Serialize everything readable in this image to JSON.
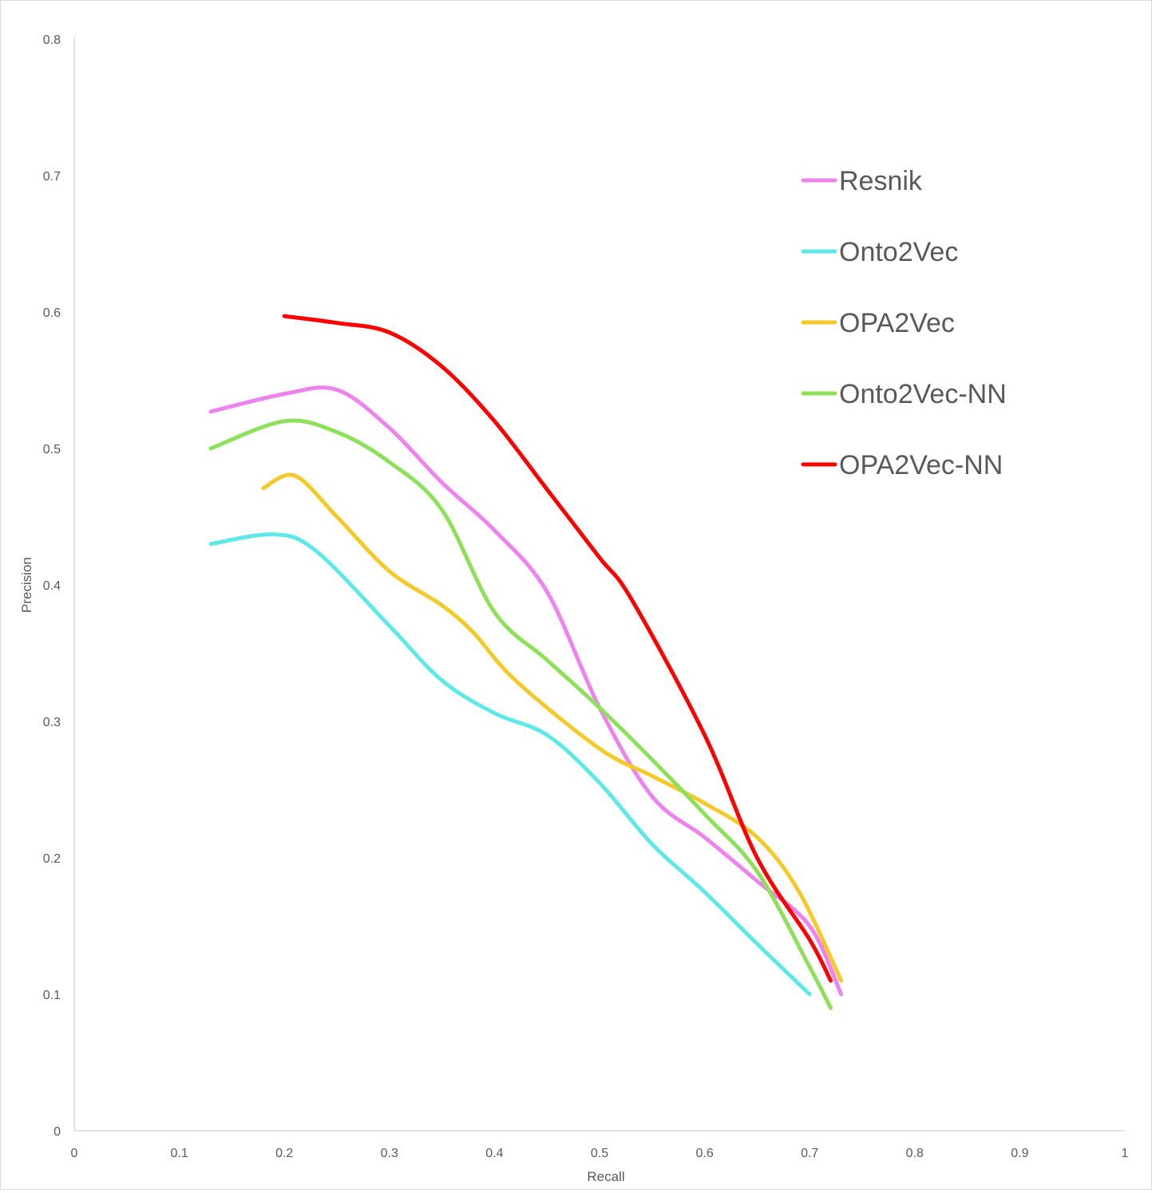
{
  "chart_data": {
    "type": "line",
    "title": "",
    "xlabel": "Recall",
    "ylabel": "Precision",
    "xlim": [
      0,
      1
    ],
    "ylim": [
      0,
      0.8
    ],
    "x_ticks": [
      "0",
      "0.1",
      "0.2",
      "0.3",
      "0.4",
      "0.5",
      "0.6",
      "0.7",
      "0.8",
      "0.9",
      "1"
    ],
    "y_ticks": [
      "0",
      "0.1",
      "0.2",
      "0.3",
      "0.4",
      "0.5",
      "0.6",
      "0.7",
      "0.8"
    ],
    "grid": false,
    "legend_position": "right",
    "series": [
      {
        "name": "Resnik",
        "color": "#ee82ee",
        "points": [
          [
            0.13,
            0.527
          ],
          [
            0.2,
            0.54
          ],
          [
            0.25,
            0.543
          ],
          [
            0.3,
            0.515
          ],
          [
            0.35,
            0.475
          ],
          [
            0.4,
            0.44
          ],
          [
            0.45,
            0.395
          ],
          [
            0.5,
            0.31
          ],
          [
            0.55,
            0.245
          ],
          [
            0.6,
            0.215
          ],
          [
            0.65,
            0.183
          ],
          [
            0.7,
            0.15
          ],
          [
            0.73,
            0.1
          ]
        ]
      },
      {
        "name": "Onto2Vec",
        "color": "#5fe8e8",
        "points": [
          [
            0.13,
            0.43
          ],
          [
            0.19,
            0.437
          ],
          [
            0.23,
            0.425
          ],
          [
            0.3,
            0.37
          ],
          [
            0.35,
            0.33
          ],
          [
            0.4,
            0.306
          ],
          [
            0.45,
            0.29
          ],
          [
            0.5,
            0.255
          ],
          [
            0.55,
            0.21
          ],
          [
            0.6,
            0.175
          ],
          [
            0.65,
            0.137
          ],
          [
            0.7,
            0.1
          ]
        ]
      },
      {
        "name": "OPA2Vec",
        "color": "#f5c92a",
        "points": [
          [
            0.18,
            0.471
          ],
          [
            0.21,
            0.48
          ],
          [
            0.25,
            0.45
          ],
          [
            0.3,
            0.41
          ],
          [
            0.35,
            0.385
          ],
          [
            0.38,
            0.365
          ],
          [
            0.42,
            0.33
          ],
          [
            0.5,
            0.28
          ],
          [
            0.55,
            0.26
          ],
          [
            0.6,
            0.24
          ],
          [
            0.65,
            0.215
          ],
          [
            0.69,
            0.175
          ],
          [
            0.73,
            0.11
          ]
        ]
      },
      {
        "name": "Onto2Vec-NN",
        "color": "#8ee05a",
        "points": [
          [
            0.13,
            0.5
          ],
          [
            0.2,
            0.52
          ],
          [
            0.25,
            0.512
          ],
          [
            0.3,
            0.49
          ],
          [
            0.35,
            0.455
          ],
          [
            0.4,
            0.38
          ],
          [
            0.45,
            0.345
          ],
          [
            0.5,
            0.31
          ],
          [
            0.55,
            0.272
          ],
          [
            0.6,
            0.232
          ],
          [
            0.65,
            0.19
          ],
          [
            0.7,
            0.12
          ],
          [
            0.72,
            0.09
          ]
        ]
      },
      {
        "name": "OPA2Vec-NN",
        "color": "#ff0000",
        "points": [
          [
            0.2,
            0.597
          ],
          [
            0.25,
            0.592
          ],
          [
            0.3,
            0.585
          ],
          [
            0.35,
            0.56
          ],
          [
            0.4,
            0.52
          ],
          [
            0.45,
            0.47
          ],
          [
            0.5,
            0.42
          ],
          [
            0.53,
            0.39
          ],
          [
            0.6,
            0.29
          ],
          [
            0.65,
            0.2
          ],
          [
            0.7,
            0.14
          ],
          [
            0.72,
            0.11
          ]
        ]
      }
    ]
  }
}
